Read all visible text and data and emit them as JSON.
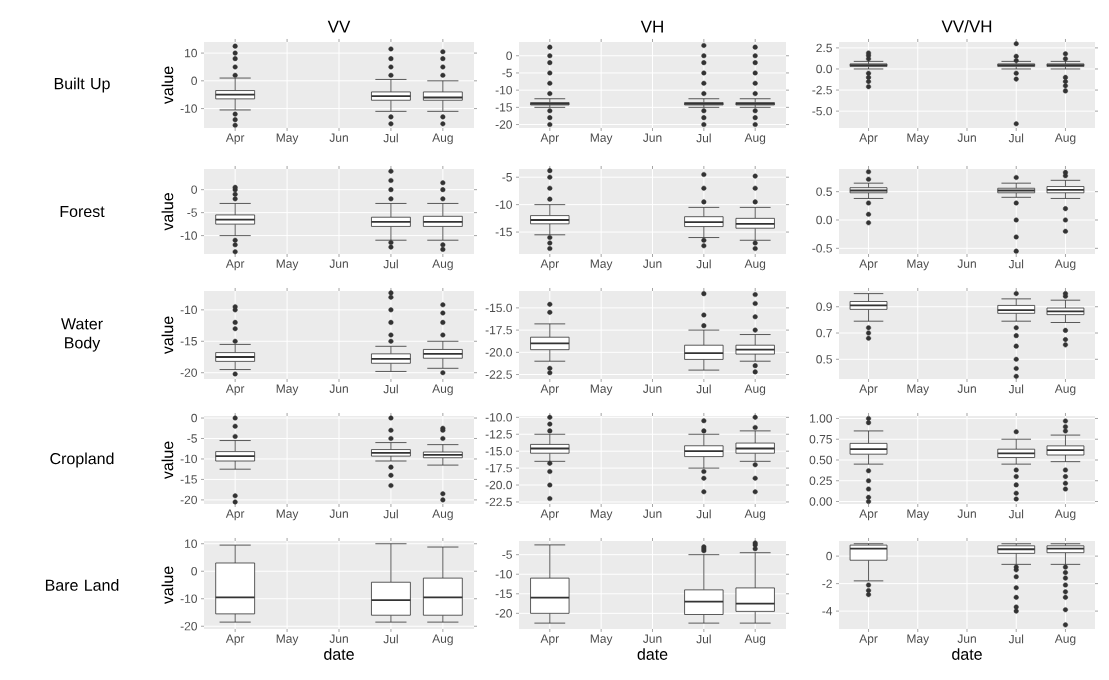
{
  "chart_data": [
    {
      "type": "box",
      "title": "VV",
      "ylabel": "value",
      "annotations": [
        "Built Up"
      ],
      "categories": [
        "Apr",
        "May",
        "Jun",
        "Jul",
        "Aug"
      ],
      "ylim": [
        -17,
        14
      ],
      "yticks": [
        -10,
        0,
        10
      ],
      "grid": true,
      "boxes": [
        {
          "low": -10.5,
          "q1": -6.5,
          "median": -5,
          "q3": -3.5,
          "high": 1,
          "outliers": [
            -16,
            -14,
            -12,
            2,
            5,
            8,
            10,
            12.5
          ]
        },
        null,
        null,
        {
          "low": -11,
          "q1": -7,
          "median": -5.5,
          "q3": -4,
          "high": 0.5,
          "outliers": [
            -15.5,
            -13,
            2,
            5,
            8,
            11.5
          ]
        },
        {
          "low": -11,
          "q1": -7,
          "median": -6,
          "q3": -4,
          "high": 0,
          "outliers": [
            -15.5,
            -13,
            2,
            5,
            8,
            10.5
          ]
        }
      ]
    },
    {
      "type": "box",
      "title": "VH",
      "categories": [
        "Apr",
        "May",
        "Jun",
        "Jul",
        "Aug"
      ],
      "ylim": [
        -21,
        4
      ],
      "yticks": [
        -20,
        -15,
        -10,
        -5,
        0
      ],
      "grid": true,
      "boxes": [
        {
          "low": -15,
          "q1": -14.3,
          "median": -14,
          "q3": -13.6,
          "high": -12.5,
          "outliers": [
            -20,
            -18,
            -16,
            -11,
            -8,
            -5,
            -2,
            0,
            2.5
          ]
        },
        null,
        null,
        {
          "low": -15,
          "q1": -14.3,
          "median": -14,
          "q3": -13.6,
          "high": -12.5,
          "outliers": [
            -20,
            -18,
            -16,
            -11,
            -8,
            -5,
            -2,
            0,
            3
          ]
        },
        {
          "low": -15,
          "q1": -14.3,
          "median": -14,
          "q3": -13.6,
          "high": -12.5,
          "outliers": [
            -20,
            -18,
            -16,
            -11,
            -8,
            -5,
            -2,
            0,
            2.5
          ]
        }
      ]
    },
    {
      "type": "box",
      "title": "VV/VH",
      "categories": [
        "Apr",
        "May",
        "Jun",
        "Jul",
        "Aug"
      ],
      "ylim": [
        -7,
        3.2
      ],
      "yticks": [
        {
          "value": -5,
          "label": "-5.0"
        },
        -2.5,
        {
          "value": 0,
          "label": "0.0"
        },
        2.5
      ],
      "grid": true,
      "boxes": [
        {
          "low": 0,
          "q1": 0.3,
          "median": 0.45,
          "q3": 0.6,
          "high": 0.9,
          "outliers": [
            -2.1,
            -1.5,
            -1,
            -0.5,
            1.2,
            1.6,
            1.9
          ]
        },
        null,
        null,
        {
          "low": 0,
          "q1": 0.3,
          "median": 0.45,
          "q3": 0.6,
          "high": 0.9,
          "outliers": [
            -6.5,
            -1.2,
            -0.5,
            1,
            1.5,
            3
          ]
        },
        {
          "low": 0,
          "q1": 0.3,
          "median": 0.45,
          "q3": 0.6,
          "high": 0.9,
          "outliers": [
            -2.6,
            -2,
            -1.5,
            -1,
            1.2,
            1.8
          ]
        }
      ]
    },
    {
      "type": "box",
      "ylabel": "value",
      "annotations": [
        "Forest"
      ],
      "categories": [
        "Apr",
        "May",
        "Jun",
        "Jul",
        "Aug"
      ],
      "ylim": [
        -14,
        4.5
      ],
      "yticks": [
        -10,
        -5,
        0
      ],
      "grid": true,
      "boxes": [
        {
          "low": -10,
          "q1": -7.5,
          "median": -6.5,
          "q3": -5.5,
          "high": -3,
          "outliers": [
            -13.5,
            -12,
            -11,
            -2,
            -1,
            0,
            0.5
          ]
        },
        null,
        null,
        {
          "low": -11,
          "q1": -8,
          "median": -7,
          "q3": -6,
          "high": -3,
          "outliers": [
            -12.5,
            -11.5,
            -2,
            0,
            2,
            4
          ]
        },
        {
          "low": -11,
          "q1": -8,
          "median": -7,
          "q3": -5.8,
          "high": -3,
          "outliers": [
            -13,
            -12,
            -2,
            0,
            1.5
          ]
        }
      ]
    },
    {
      "type": "box",
      "categories": [
        "Apr",
        "May",
        "Jun",
        "Jul",
        "Aug"
      ],
      "ylim": [
        -19,
        -3.5
      ],
      "yticks": [
        -15,
        -10,
        -5
      ],
      "grid": true,
      "boxes": [
        {
          "low": -15.5,
          "q1": -13.5,
          "median": -12.8,
          "q3": -12,
          "high": -10,
          "outliers": [
            -18,
            -17,
            -16,
            -9,
            -7,
            -5,
            -3.8
          ]
        },
        null,
        null,
        {
          "low": -16,
          "q1": -14,
          "median": -13.2,
          "q3": -12.2,
          "high": -10.5,
          "outliers": [
            -17.5,
            -16.5,
            -9.5,
            -7,
            -4.5
          ]
        },
        {
          "low": -16.5,
          "q1": -14.3,
          "median": -13.5,
          "q3": -12.5,
          "high": -10.5,
          "outliers": [
            -18,
            -17,
            -9.5,
            -7,
            -4.8
          ]
        }
      ]
    },
    {
      "type": "box",
      "categories": [
        "Apr",
        "May",
        "Jun",
        "Jul",
        "Aug"
      ],
      "ylim": [
        -0.6,
        0.9
      ],
      "yticks": [
        -0.5,
        {
          "value": 0,
          "label": "0.0"
        },
        0.5
      ],
      "grid": true,
      "boxes": [
        {
          "low": 0.38,
          "q1": 0.48,
          "median": 0.52,
          "q3": 0.57,
          "high": 0.65,
          "outliers": [
            -0.05,
            0.1,
            0.3,
            0.72,
            0.85
          ]
        },
        null,
        null,
        {
          "low": 0.4,
          "q1": 0.48,
          "median": 0.52,
          "q3": 0.56,
          "high": 0.65,
          "outliers": [
            -0.55,
            -0.3,
            0,
            0.3,
            0.75
          ]
        },
        {
          "low": 0.38,
          "q1": 0.48,
          "median": 0.53,
          "q3": 0.59,
          "high": 0.7,
          "outliers": [
            -0.2,
            0,
            0.2,
            0.78,
            0.84
          ]
        }
      ]
    },
    {
      "type": "box",
      "ylabel": "value",
      "annotations": [
        "Water Body"
      ],
      "categories": [
        "Apr",
        "May",
        "Jun",
        "Jul",
        "Aug"
      ],
      "ylim": [
        -21,
        -7
      ],
      "yticks": [
        -20,
        -15,
        -10
      ],
      "grid": true,
      "boxes": [
        {
          "low": -19.5,
          "q1": -18.2,
          "median": -17.5,
          "q3": -16.8,
          "high": -15.5,
          "outliers": [
            -20.2,
            -15,
            -13,
            -12,
            -10,
            -9.5
          ]
        },
        null,
        null,
        {
          "low": -19.8,
          "q1": -18.5,
          "median": -17.8,
          "q3": -17,
          "high": -15.8,
          "outliers": [
            -15,
            -14,
            -12,
            -10,
            -8,
            -7.3
          ]
        },
        {
          "low": -19.3,
          "q1": -17.7,
          "median": -17,
          "q3": -16.3,
          "high": -15,
          "outliers": [
            -20,
            -14,
            -12,
            -10.5,
            -9.2
          ]
        }
      ]
    },
    {
      "type": "box",
      "categories": [
        "Apr",
        "May",
        "Jun",
        "Jul",
        "Aug"
      ],
      "ylim": [
        -23,
        -13.1
      ],
      "yticks": [
        {
          "value": -22.5,
          "label": "-22.5"
        },
        {
          "value": -20,
          "label": "-20.0"
        },
        {
          "value": -17.5,
          "label": "-17.5"
        },
        {
          "value": -15,
          "label": "-15.0"
        }
      ],
      "grid": true,
      "boxes": [
        {
          "low": -21,
          "q1": -19.7,
          "median": -19,
          "q3": -18.3,
          "high": -16.8,
          "outliers": [
            -22.3,
            -21.8,
            -15.5,
            -14.6
          ]
        },
        null,
        null,
        {
          "low": -22,
          "q1": -20.8,
          "median": -20.1,
          "q3": -19.2,
          "high": -17.5,
          "outliers": [
            -17,
            -15.8,
            -13.4
          ]
        },
        {
          "low": -21,
          "q1": -20.2,
          "median": -19.7,
          "q3": -19.2,
          "high": -18,
          "outliers": [
            -22.2,
            -21.5,
            -17.5,
            -16,
            -14.5,
            -13.5
          ]
        }
      ]
    },
    {
      "type": "box",
      "categories": [
        "Apr",
        "May",
        "Jun",
        "Jul",
        "Aug"
      ],
      "ylim": [
        0.35,
        1.02
      ],
      "yticks": [
        0.5,
        0.7,
        0.9
      ],
      "grid": true,
      "boxes": [
        {
          "low": 0.79,
          "q1": 0.88,
          "median": 0.91,
          "q3": 0.94,
          "high": 1.0,
          "outliers": [
            0.66,
            0.7,
            0.74
          ]
        },
        null,
        null,
        {
          "low": 0.79,
          "q1": 0.85,
          "median": 0.875,
          "q3": 0.91,
          "high": 0.96,
          "outliers": [
            0.37,
            0.43,
            0.5,
            0.6,
            0.68,
            0.74,
            1.0
          ]
        },
        {
          "low": 0.78,
          "q1": 0.84,
          "median": 0.865,
          "q3": 0.89,
          "high": 0.95,
          "outliers": [
            0.61,
            0.65,
            0.72,
            0.98,
            1.0
          ]
        }
      ]
    },
    {
      "type": "box",
      "ylabel": "value",
      "annotations": [
        "Cropland"
      ],
      "categories": [
        "Apr",
        "May",
        "Jun",
        "Jul",
        "Aug"
      ],
      "ylim": [
        -21,
        0.5
      ],
      "yticks": [
        -20,
        -15,
        -10,
        -5,
        0
      ],
      "grid": true,
      "boxes": [
        {
          "low": -12.5,
          "q1": -10.5,
          "median": -9.3,
          "q3": -8.2,
          "high": -5.5,
          "outliers": [
            -20.5,
            -19,
            -4.5,
            -2,
            0
          ]
        },
        null,
        null,
        {
          "low": -10.5,
          "q1": -9.3,
          "median": -8.5,
          "q3": -7.7,
          "high": -6,
          "outliers": [
            -16.5,
            -14,
            -12,
            -5,
            -3,
            0
          ]
        },
        {
          "low": -11.5,
          "q1": -9.7,
          "median": -9,
          "q3": -8.3,
          "high": -6.5,
          "outliers": [
            -20,
            -18.5,
            -5,
            -3,
            -2.5
          ]
        }
      ]
    },
    {
      "type": "box",
      "categories": [
        "Apr",
        "May",
        "Jun",
        "Jul",
        "Aug"
      ],
      "ylim": [
        -22.8,
        -9.8
      ],
      "yticks": [
        {
          "value": -22.5,
          "label": "-22.5"
        },
        {
          "value": -20,
          "label": "-20.0"
        },
        {
          "value": -17.5,
          "label": "-17.5"
        },
        {
          "value": -15,
          "label": "-15.0"
        },
        {
          "value": -12.5,
          "label": "-12.5"
        },
        {
          "value": -10,
          "label": "-10.0"
        }
      ],
      "grid": true,
      "boxes": [
        {
          "low": -16.5,
          "q1": -15.3,
          "median": -14.6,
          "q3": -14,
          "high": -12.5,
          "outliers": [
            -22,
            -20,
            -18,
            -16.8,
            -12,
            -11,
            -10
          ]
        },
        null,
        null,
        {
          "low": -17.5,
          "q1": -15.8,
          "median": -15,
          "q3": -14.2,
          "high": -12.5,
          "outliers": [
            -21,
            -19,
            -18,
            -12,
            -10.5
          ]
        },
        {
          "low": -16.5,
          "q1": -15.3,
          "median": -14.6,
          "q3": -13.8,
          "high": -12,
          "outliers": [
            -21,
            -19,
            -17,
            -11.5,
            -10
          ]
        }
      ]
    },
    {
      "type": "box",
      "categories": [
        "Apr",
        "May",
        "Jun",
        "Jul",
        "Aug"
      ],
      "ylim": [
        -0.03,
        1.03
      ],
      "yticks": [
        {
          "value": 0,
          "label": "0.00"
        },
        0.25,
        {
          "value": 0.5,
          "label": "0.50"
        },
        0.75,
        {
          "value": 1,
          "label": "1.00"
        }
      ],
      "grid": true,
      "boxes": [
        {
          "low": 0.45,
          "q1": 0.57,
          "median": 0.63,
          "q3": 0.7,
          "high": 0.85,
          "outliers": [
            0,
            0.05,
            0.15,
            0.25,
            0.37,
            0.95,
            1.0
          ]
        },
        null,
        null,
        {
          "low": 0.45,
          "q1": 0.53,
          "median": 0.58,
          "q3": 0.63,
          "high": 0.75,
          "outliers": [
            0.03,
            0.1,
            0.2,
            0.3,
            0.38,
            0.84
          ]
        },
        {
          "low": 0.48,
          "q1": 0.56,
          "median": 0.62,
          "q3": 0.67,
          "high": 0.8,
          "outliers": [
            0.15,
            0.22,
            0.3,
            0.38,
            0.85,
            0.9,
            0.97
          ]
        }
      ]
    },
    {
      "type": "box",
      "ylabel": "value",
      "xlabel": "date",
      "annotations": [
        "Bare Land"
      ],
      "categories": [
        "Apr",
        "May",
        "Jun",
        "Jul",
        "Aug"
      ],
      "ylim": [
        -21,
        11
      ],
      "yticks": [
        -20,
        -10,
        0,
        10
      ],
      "grid": true,
      "boxes": [
        {
          "low": -18.5,
          "q1": -15.5,
          "median": -9.5,
          "q3": 3,
          "high": 9.5
        },
        null,
        null,
        {
          "low": -18.5,
          "q1": -16,
          "median": -10.5,
          "q3": -4,
          "high": 10
        },
        {
          "low": -18.5,
          "q1": -16,
          "median": -9.5,
          "q3": -2.5,
          "high": 8.8
        }
      ]
    },
    {
      "type": "box",
      "xlabel": "date",
      "categories": [
        "Apr",
        "May",
        "Jun",
        "Jul",
        "Aug"
      ],
      "ylim": [
        -24,
        -1.5
      ],
      "yticks": [
        -20,
        -15,
        -10,
        -5
      ],
      "grid": true,
      "boxes": [
        {
          "low": -22.5,
          "q1": -20,
          "median": -16,
          "q3": -11,
          "high": -2.5
        },
        null,
        null,
        {
          "low": -22.5,
          "q1": -20.3,
          "median": -17,
          "q3": -14,
          "high": -5,
          "outliers": [
            -4,
            -3.5,
            -3
          ]
        },
        {
          "low": -22.5,
          "q1": -19.5,
          "median": -17.5,
          "q3": -13.5,
          "high": -4.5,
          "outliers": [
            -3.5,
            -2.5,
            -2
          ]
        }
      ]
    },
    {
      "type": "box",
      "xlabel": "date",
      "categories": [
        "Apr",
        "May",
        "Jun",
        "Jul",
        "Aug"
      ],
      "ylim": [
        -5.3,
        1.1
      ],
      "yticks": [
        -4,
        -2,
        0
      ],
      "grid": true,
      "boxes": [
        {
          "low": -1.8,
          "q1": -0.3,
          "median": 0.55,
          "q3": 0.8,
          "high": 0.9,
          "outliers": [
            -2.8,
            -2.5,
            -2.1
          ]
        },
        null,
        null,
        {
          "low": -0.6,
          "q1": 0.2,
          "median": 0.5,
          "q3": 0.75,
          "high": 0.9,
          "outliers": [
            -4,
            -3.7,
            -3,
            -2.3,
            -1.5,
            -1,
            -0.8
          ]
        },
        {
          "low": -0.6,
          "q1": 0.25,
          "median": 0.55,
          "q3": 0.75,
          "high": 0.9,
          "outliers": [
            -5,
            -3.9,
            -3,
            -2.6,
            -2.1,
            -1.6,
            -1.2,
            -0.8
          ]
        }
      ]
    }
  ]
}
